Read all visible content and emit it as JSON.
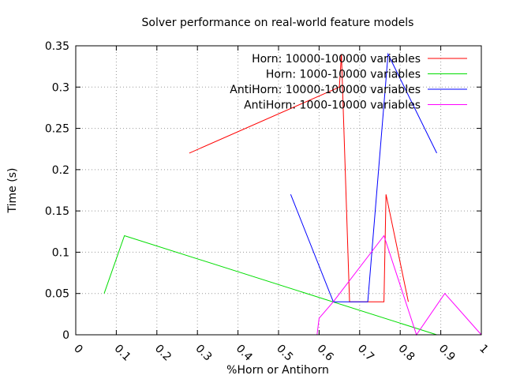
{
  "chart_data": {
    "type": "line",
    "title": "Solver performance on real-world feature models",
    "xlabel": "%Horn or Antihorn",
    "ylabel": "Time (s)",
    "xlim": [
      0,
      1
    ],
    "ylim": [
      0,
      0.35
    ],
    "xticks": [
      "0",
      "0.1",
      "0.2",
      "0.3",
      "0.4",
      "0.5",
      "0.6",
      "0.7",
      "0.8",
      "0.9",
      "1"
    ],
    "yticks": [
      "0",
      "0.05",
      "0.1",
      "0.15",
      "0.2",
      "0.25",
      "0.3",
      "0.35"
    ],
    "grid": true,
    "legend_position": "top-right",
    "series": [
      {
        "name": "Horn: 10000-100000 variables",
        "color": "#ff0000",
        "points": [
          [
            0.28,
            0.22
          ],
          [
            0.65,
            0.3
          ],
          [
            0.655,
            0.34
          ],
          [
            0.675,
            0.04
          ],
          [
            0.76,
            0.04
          ],
          [
            0.765,
            0.17
          ],
          [
            0.82,
            0.04
          ]
        ]
      },
      {
        "name": "Horn: 1000-10000 variables",
        "color": "#00dd00",
        "points": [
          [
            0.07,
            0.05
          ],
          [
            0.12,
            0.12
          ],
          [
            0.89,
            0.0
          ]
        ]
      },
      {
        "name": "AntiHorn: 10000-100000 variables",
        "color": "#0000ff",
        "points": [
          [
            0.53,
            0.17
          ],
          [
            0.635,
            0.04
          ],
          [
            0.72,
            0.04
          ],
          [
            0.77,
            0.34
          ],
          [
            0.89,
            0.22
          ]
        ]
      },
      {
        "name": "AntiHorn: 1000-10000 variables",
        "color": "#ff00ff",
        "points": [
          [
            0.595,
            0.0
          ],
          [
            0.6,
            0.02
          ],
          [
            0.635,
            0.04
          ],
          [
            0.76,
            0.12
          ],
          [
            0.84,
            0.0
          ],
          [
            0.91,
            0.05
          ],
          [
            1.0,
            0.0
          ]
        ]
      }
    ]
  }
}
